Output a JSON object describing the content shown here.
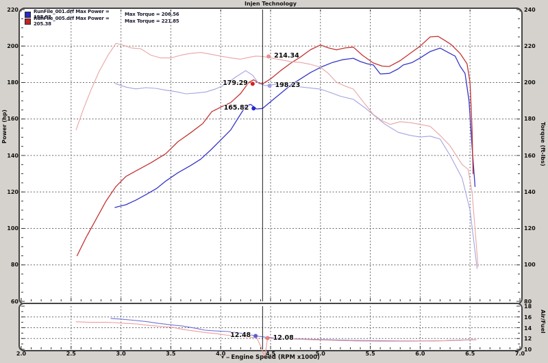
{
  "window": {
    "background": "#d5d2cd",
    "plot_background": "#ffffff",
    "frame_color": "#454545",
    "grid_color": "#666666",
    "cursor_color": "#1a1a1a"
  },
  "title": "Injen Technology",
  "legend": [
    {
      "run": "RunFile_001.drf",
      "color": "#2a2ac4",
      "max_power_label": "Max Power = 198.92",
      "max_torque_label": "Max Torque = 206.56"
    },
    {
      "run": "RunFile_005.drf",
      "color": "#c42424",
      "max_power_label": "Max Power = 205.38",
      "max_torque_label": "Max Torque = 221.85"
    }
  ],
  "axes": {
    "power": {
      "title": "Power (hp)",
      "min": 60,
      "max": 220,
      "tick_step": 20
    },
    "torque": {
      "title": "Torque (ft-lbs)",
      "min": 80,
      "max": 240,
      "tick_step": 20
    },
    "afr": {
      "title": "Air/Fuel",
      "min": 10,
      "max": 18,
      "tick_step": 2
    },
    "rpm": {
      "title": "Engine Speed (RPM x1000)",
      "title_prefix": "▾ ‒",
      "min": 2.0,
      "max": 7.0,
      "tick_step": 0.5
    }
  },
  "cursor": {
    "rpm": 4.42
  },
  "chart_data": {
    "type": "line",
    "xlabel": "Engine Speed (RPM x1000)",
    "x_range": [
      2.0,
      7.0
    ],
    "power_range": [
      60,
      220
    ],
    "torque_range": [
      80,
      240
    ],
    "afr_range": [
      10,
      18
    ],
    "grid": true,
    "series": [
      {
        "name": "power_001",
        "run": "RunFile_001.drf",
        "axis": "power",
        "color": "#3434c8",
        "width": 1.3,
        "max": 198.92,
        "points": [
          [
            2.94,
            111.5
          ],
          [
            3.05,
            113
          ],
          [
            3.15,
            115.5
          ],
          [
            3.25,
            118.5
          ],
          [
            3.36,
            122
          ],
          [
            3.45,
            126
          ],
          [
            3.57,
            130.5
          ],
          [
            3.7,
            134.5
          ],
          [
            3.8,
            138
          ],
          [
            3.9,
            143
          ],
          [
            4.0,
            148.5
          ],
          [
            4.1,
            154
          ],
          [
            4.18,
            161
          ],
          [
            4.25,
            167
          ],
          [
            4.3,
            168
          ],
          [
            4.36,
            165.5
          ],
          [
            4.42,
            165.8
          ],
          [
            4.5,
            169.5
          ],
          [
            4.6,
            174
          ],
          [
            4.7,
            178.5
          ],
          [
            4.8,
            182
          ],
          [
            4.9,
            185.5
          ],
          [
            5.02,
            188.8
          ],
          [
            5.12,
            191
          ],
          [
            5.22,
            192.5
          ],
          [
            5.33,
            193.3
          ],
          [
            5.4,
            191.5
          ],
          [
            5.47,
            190.3
          ],
          [
            5.53,
            189.6
          ],
          [
            5.6,
            184.7
          ],
          [
            5.69,
            185
          ],
          [
            5.78,
            187.5
          ],
          [
            5.83,
            189.6
          ],
          [
            5.92,
            191
          ],
          [
            6.0,
            193.5
          ],
          [
            6.1,
            197
          ],
          [
            6.2,
            198.9
          ],
          [
            6.28,
            196.5
          ],
          [
            6.35,
            194.5
          ],
          [
            6.4,
            189
          ],
          [
            6.45,
            185
          ],
          [
            6.49,
            170
          ],
          [
            6.52,
            145
          ],
          [
            6.55,
            123
          ]
        ]
      },
      {
        "name": "power_005",
        "run": "RunFile_005.drf",
        "axis": "power",
        "color": "#c43232",
        "width": 1.3,
        "max": 205.38,
        "points": [
          [
            2.56,
            85
          ],
          [
            2.65,
            95
          ],
          [
            2.75,
            105
          ],
          [
            2.85,
            115
          ],
          [
            2.95,
            123
          ],
          [
            3.05,
            128.5
          ],
          [
            3.15,
            131.5
          ],
          [
            3.3,
            136
          ],
          [
            3.45,
            141
          ],
          [
            3.57,
            147.5
          ],
          [
            3.7,
            152.5
          ],
          [
            3.82,
            157.5
          ],
          [
            3.91,
            164
          ],
          [
            4.0,
            166.5
          ],
          [
            4.1,
            169
          ],
          [
            4.2,
            174
          ],
          [
            4.28,
            180
          ],
          [
            4.33,
            181.5
          ],
          [
            4.38,
            179.8
          ],
          [
            4.42,
            179.3
          ],
          [
            4.5,
            182
          ],
          [
            4.6,
            186.5
          ],
          [
            4.7,
            190.5
          ],
          [
            4.8,
            194
          ],
          [
            4.9,
            198
          ],
          [
            5.0,
            200.6
          ],
          [
            5.08,
            199
          ],
          [
            5.16,
            197.9
          ],
          [
            5.25,
            199
          ],
          [
            5.33,
            199.4
          ],
          [
            5.42,
            195
          ],
          [
            5.53,
            190.7
          ],
          [
            5.62,
            189
          ],
          [
            5.69,
            188.8
          ],
          [
            5.8,
            192
          ],
          [
            5.9,
            196
          ],
          [
            6.0,
            200
          ],
          [
            6.1,
            205
          ],
          [
            6.18,
            205.3
          ],
          [
            6.25,
            203
          ],
          [
            6.31,
            200.9
          ],
          [
            6.4,
            196
          ],
          [
            6.47,
            190.3
          ],
          [
            6.5,
            180
          ],
          [
            6.52,
            155
          ],
          [
            6.53,
            130
          ]
        ]
      },
      {
        "name": "torque_001",
        "run": "RunFile_001.drf",
        "axis": "torque",
        "color": "#a2a2e0",
        "width": 1.1,
        "max": 206.56,
        "points": [
          [
            2.94,
            199.5
          ],
          [
            3.05,
            197.5
          ],
          [
            3.15,
            196.5
          ],
          [
            3.25,
            197.2
          ],
          [
            3.35,
            196.8
          ],
          [
            3.45,
            195.8
          ],
          [
            3.55,
            195
          ],
          [
            3.65,
            193.8
          ],
          [
            3.75,
            194.2
          ],
          [
            3.85,
            194.8
          ],
          [
            3.95,
            196.5
          ],
          [
            4.05,
            199
          ],
          [
            4.15,
            203
          ],
          [
            4.25,
            206.5
          ],
          [
            4.32,
            204
          ],
          [
            4.38,
            199.5
          ],
          [
            4.45,
            198.3
          ],
          [
            4.55,
            199
          ],
          [
            4.65,
            198.6
          ],
          [
            4.8,
            197.6
          ],
          [
            5.0,
            196.4
          ],
          [
            5.1,
            194.5
          ],
          [
            5.2,
            192.5
          ],
          [
            5.33,
            190.8
          ],
          [
            5.45,
            186
          ],
          [
            5.55,
            181.4
          ],
          [
            5.65,
            177
          ],
          [
            5.78,
            172.7
          ],
          [
            5.9,
            171
          ],
          [
            6.0,
            170.1
          ],
          [
            6.1,
            170.6
          ],
          [
            6.2,
            169
          ],
          [
            6.3,
            160
          ],
          [
            6.42,
            147.6
          ],
          [
            6.5,
            130
          ],
          [
            6.54,
            112
          ],
          [
            6.57,
            98
          ]
        ]
      },
      {
        "name": "torque_005",
        "run": "RunFile_005.drf",
        "axis": "torque",
        "color": "#e8a4a4",
        "width": 1.1,
        "max": 221.85,
        "points": [
          [
            2.55,
            174
          ],
          [
            2.62,
            185
          ],
          [
            2.7,
            196
          ],
          [
            2.78,
            206
          ],
          [
            2.87,
            215
          ],
          [
            2.95,
            221.5
          ],
          [
            3.02,
            220.5
          ],
          [
            3.1,
            219
          ],
          [
            3.2,
            218.5
          ],
          [
            3.3,
            215
          ],
          [
            3.4,
            213.5
          ],
          [
            3.5,
            213.5
          ],
          [
            3.6,
            215
          ],
          [
            3.7,
            216
          ],
          [
            3.8,
            216.5
          ],
          [
            3.9,
            215.5
          ],
          [
            4.0,
            214.5
          ],
          [
            4.1,
            213.5
          ],
          [
            4.2,
            212.8
          ],
          [
            4.28,
            213.8
          ],
          [
            4.35,
            214.5
          ],
          [
            4.42,
            214.3
          ],
          [
            4.5,
            213.5
          ],
          [
            4.6,
            212.5
          ],
          [
            4.7,
            211.5
          ],
          [
            4.8,
            211
          ],
          [
            4.9,
            210
          ],
          [
            5.0,
            208.4
          ],
          [
            5.08,
            205
          ],
          [
            5.16,
            200.2
          ],
          [
            5.25,
            198
          ],
          [
            5.33,
            196.4
          ],
          [
            5.42,
            190
          ],
          [
            5.53,
            182.5
          ],
          [
            5.62,
            179
          ],
          [
            5.7,
            177
          ],
          [
            5.8,
            178.5
          ],
          [
            5.9,
            178
          ],
          [
            6.0,
            177
          ],
          [
            6.1,
            176
          ],
          [
            6.2,
            171
          ],
          [
            6.3,
            165.3
          ],
          [
            6.42,
            155
          ],
          [
            6.48,
            152.5
          ],
          [
            6.52,
            140
          ],
          [
            6.55,
            120
          ],
          [
            6.58,
            99
          ]
        ]
      },
      {
        "name": "afr_001",
        "run": "RunFile_001.drf",
        "axis": "afr",
        "color": "#7070d8",
        "width": 1.1,
        "points": [
          [
            2.9,
            15.7
          ],
          [
            3.0,
            15.6
          ],
          [
            3.12,
            15.4
          ],
          [
            3.25,
            15.15
          ],
          [
            3.38,
            14.8
          ],
          [
            3.52,
            14.5
          ],
          [
            3.62,
            14.3
          ],
          [
            3.75,
            13.9
          ],
          [
            3.84,
            13.55
          ],
          [
            3.95,
            13.4
          ],
          [
            4.07,
            13.3
          ],
          [
            4.18,
            13.05
          ],
          [
            4.28,
            12.75
          ],
          [
            4.35,
            12.48
          ],
          [
            4.45,
            12.25
          ],
          [
            4.55,
            12.1
          ],
          [
            4.7,
            11.95
          ],
          [
            4.9,
            11.85
          ],
          [
            5.1,
            11.75
          ],
          [
            5.3,
            11.65
          ],
          [
            5.55,
            11.6
          ],
          [
            5.8,
            11.55
          ],
          [
            6.05,
            11.55
          ],
          [
            6.25,
            11.6
          ],
          [
            6.4,
            11.7
          ],
          [
            6.52,
            11.78
          ],
          [
            6.56,
            11.78
          ]
        ]
      },
      {
        "name": "afr_005",
        "run": "RunFile_005.drf",
        "axis": "afr",
        "color": "#ec9c9c",
        "width": 1.1,
        "points": [
          [
            2.55,
            15.1
          ],
          [
            2.7,
            15.0
          ],
          [
            2.85,
            15.0
          ],
          [
            2.93,
            14.95
          ],
          [
            3.05,
            14.8
          ],
          [
            3.16,
            14.7
          ],
          [
            3.3,
            14.4
          ],
          [
            3.4,
            14.25
          ],
          [
            3.51,
            14.1
          ],
          [
            3.62,
            13.7
          ],
          [
            3.73,
            13.4
          ],
          [
            3.85,
            13.1
          ],
          [
            3.96,
            12.9
          ],
          [
            4.07,
            12.6
          ],
          [
            4.18,
            12.4
          ],
          [
            4.28,
            12.25
          ],
          [
            4.36,
            12.2
          ],
          [
            4.41,
            10.2
          ],
          [
            4.44,
            8.4
          ],
          [
            4.46,
            10.8
          ],
          [
            4.47,
            12.08
          ],
          [
            4.55,
            12.0
          ],
          [
            4.7,
            11.9
          ],
          [
            4.95,
            11.75
          ],
          [
            5.15,
            11.65
          ],
          [
            5.35,
            11.55
          ],
          [
            5.6,
            11.5
          ],
          [
            5.9,
            11.5
          ],
          [
            6.15,
            11.55
          ],
          [
            6.3,
            11.6
          ],
          [
            6.45,
            11.7
          ],
          [
            6.56,
            11.75
          ]
        ]
      }
    ]
  },
  "cursor_readouts": [
    {
      "text": "214.34",
      "rpm": 4.48,
      "value": 214.34,
      "axis": "torque",
      "color": "#e79090",
      "side": "right"
    },
    {
      "text": "198.23",
      "rpm": 4.49,
      "value": 198.23,
      "axis": "torque",
      "color": "#9f9fe8",
      "side": "right"
    },
    {
      "text": "179.29",
      "rpm": 4.32,
      "value": 179.29,
      "axis": "power",
      "color": "#d42020",
      "side": "left"
    },
    {
      "text": "165.82",
      "rpm": 4.33,
      "value": 165.82,
      "axis": "power",
      "color": "#2626d4",
      "side": "left"
    },
    {
      "text": "12.48",
      "rpm": 4.35,
      "value": 12.48,
      "axis": "afr",
      "color": "#5b5bd6",
      "side": "left"
    },
    {
      "text": "12.08",
      "rpm": 4.47,
      "value": 12.08,
      "axis": "afr",
      "color": "#e87f7f",
      "side": "right"
    }
  ]
}
